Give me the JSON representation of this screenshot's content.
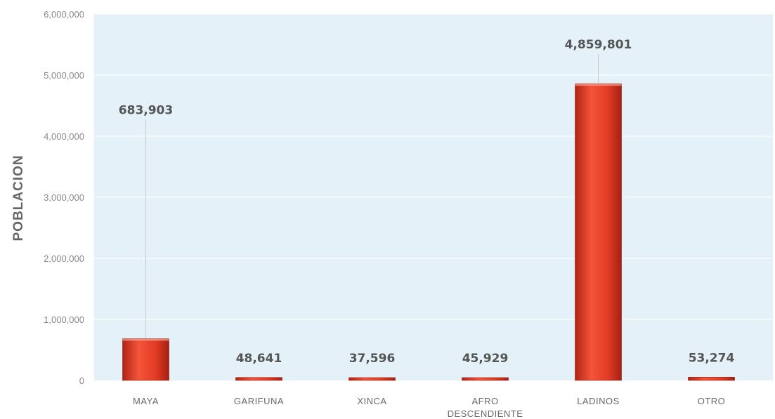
{
  "chart_data": {
    "type": "bar",
    "ylabel": "POBLACION",
    "xlabel": "",
    "ylim": [
      0,
      6000000
    ],
    "yticks": [
      0,
      1000000,
      2000000,
      3000000,
      4000000,
      5000000,
      6000000
    ],
    "ytick_labels": [
      "0",
      "1,000,000",
      "2,000,000",
      "3,000,000",
      "4,000,000",
      "5,000,000",
      "6,000,000"
    ],
    "grid": true,
    "categories": [
      [
        "MAYA"
      ],
      [
        "GARIFUNA"
      ],
      [
        "XINCA"
      ],
      [
        "AFRO",
        "DESCENDIENTE"
      ],
      [
        "LADINOS"
      ],
      [
        "OTRO"
      ]
    ],
    "values": [
      683903,
      48641,
      37596,
      45929,
      4859801,
      53274
    ],
    "value_labels": [
      "683,903",
      "48,641",
      "37,596",
      "45,929",
      "4,859,801",
      "53,274"
    ],
    "colors": {
      "bar_light": "#f4543a",
      "bar_dark": "#b02415",
      "plot_bg": "#e4f1f9",
      "grid": "#f7fbfd"
    }
  }
}
